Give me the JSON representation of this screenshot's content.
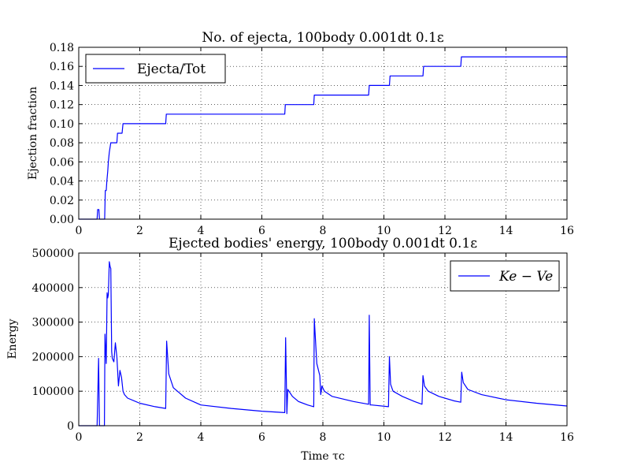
{
  "chart_data": [
    {
      "type": "line",
      "title": "No. of ejecta, 100body 0.001dt 0.1ε",
      "xlabel": "",
      "ylabel": "Ejection fraction",
      "xlim": [
        0,
        16
      ],
      "ylim": [
        0,
        0.18
      ],
      "xticks": [
        "0",
        "2",
        "4",
        "6",
        "8",
        "10",
        "12",
        "14",
        "16"
      ],
      "yticks": [
        "0.00",
        "0.02",
        "0.04",
        "0.06",
        "0.08",
        "0.10",
        "0.12",
        "0.14",
        "0.16",
        "0.18"
      ],
      "grid": true,
      "legend_position": "top-left",
      "series": [
        {
          "name": "Ejecta/Tot",
          "color": "#0000ff",
          "x": [
            0,
            0.6,
            0.62,
            0.66,
            0.68,
            0.7,
            0.85,
            0.87,
            0.9,
            0.92,
            0.95,
            0.97,
            1.0,
            1.05,
            1.1,
            1.15,
            1.25,
            1.27,
            1.42,
            1.45,
            2.85,
            2.87,
            6.75,
            6.77,
            7.7,
            7.72,
            9.5,
            9.52,
            10.18,
            10.2,
            11.28,
            11.3,
            12.52,
            12.54,
            16
          ],
          "y": [
            0,
            0,
            0.01,
            0.01,
            0,
            0,
            0,
            0.03,
            0.03,
            0.04,
            0.05,
            0.06,
            0.07,
            0.08,
            0.08,
            0.08,
            0.08,
            0.09,
            0.09,
            0.1,
            0.1,
            0.11,
            0.11,
            0.12,
            0.12,
            0.13,
            0.13,
            0.14,
            0.14,
            0.15,
            0.15,
            0.16,
            0.16,
            0.17,
            0.17
          ]
        }
      ]
    },
    {
      "type": "line",
      "title": "Ejected bodies' energy, 100body 0.001dt 0.1ε",
      "xlabel": "Time τc",
      "ylabel": "Energy",
      "xlim": [
        0,
        16
      ],
      "ylim": [
        0,
        500000
      ],
      "xticks": [
        "0",
        "2",
        "4",
        "6",
        "8",
        "10",
        "12",
        "14",
        "16"
      ],
      "yticks": [
        "0",
        "100000",
        "200000",
        "300000",
        "400000",
        "500000"
      ],
      "grid": true,
      "legend_position": "top-right",
      "series": [
        {
          "name": "Ke − Ve",
          "color": "#0000ff",
          "x": [
            0,
            0.6,
            0.65,
            0.68,
            0.7,
            0.84,
            0.86,
            0.9,
            0.93,
            0.95,
            0.97,
            1.0,
            1.03,
            1.05,
            1.08,
            1.1,
            1.15,
            1.2,
            1.25,
            1.3,
            1.35,
            1.4,
            1.45,
            1.5,
            1.6,
            2.0,
            2.5,
            2.85,
            2.88,
            2.95,
            3.1,
            3.5,
            4.0,
            5.0,
            6.0,
            6.75,
            6.78,
            6.82,
            6.85,
            7.0,
            7.2,
            7.5,
            7.7,
            7.72,
            7.8,
            7.9,
            7.93,
            7.97,
            8.05,
            8.3,
            9.0,
            9.5,
            9.52,
            9.55,
            9.6,
            10.15,
            10.18,
            10.22,
            10.3,
            10.6,
            11.0,
            11.25,
            11.28,
            11.33,
            11.45,
            11.8,
            12.3,
            12.52,
            12.55,
            12.6,
            12.75,
            13.2,
            14.0,
            15.0,
            16.0
          ],
          "y": [
            0,
            0,
            195000,
            0,
            0,
            0,
            265000,
            180000,
            385000,
            370000,
            380000,
            475000,
            460000,
            455000,
            215000,
            195000,
            185000,
            240000,
            200000,
            115000,
            160000,
            140000,
            100000,
            90000,
            80000,
            65000,
            55000,
            50000,
            245000,
            150000,
            110000,
            80000,
            60000,
            50000,
            42000,
            38000,
            255000,
            35000,
            105000,
            85000,
            70000,
            60000,
            55000,
            310000,
            180000,
            145000,
            90000,
            115000,
            100000,
            85000,
            70000,
            62000,
            320000,
            60000,
            60000,
            55000,
            200000,
            120000,
            100000,
            85000,
            70000,
            62000,
            145000,
            115000,
            100000,
            85000,
            72000,
            68000,
            155000,
            125000,
            105000,
            90000,
            75000,
            65000,
            57000
          ]
        }
      ]
    }
  ]
}
